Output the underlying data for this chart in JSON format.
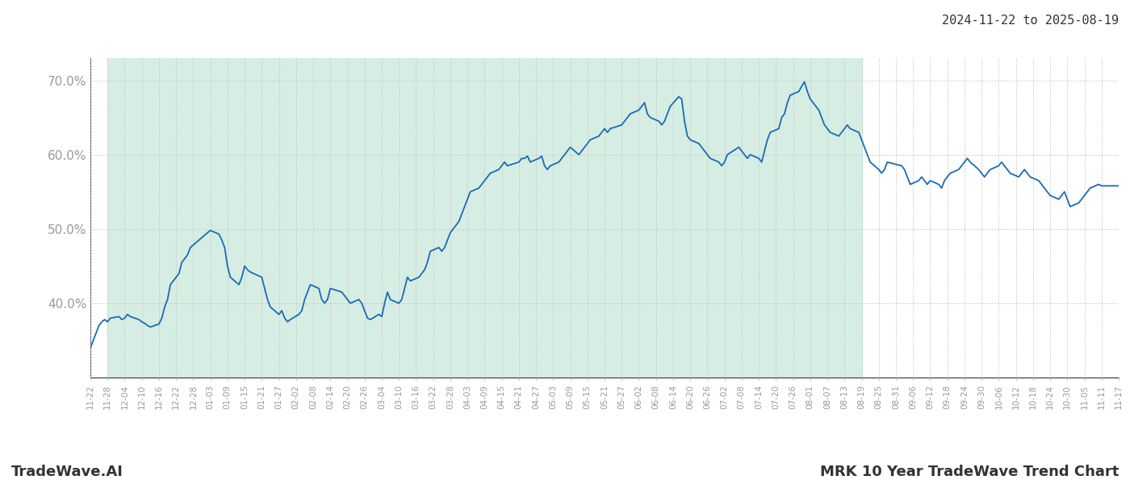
{
  "title_date_range": "2024-11-22 to 2025-08-19",
  "footer_left": "TradeWave.AI",
  "footer_right": "MRK 10 Year TradeWave Trend Chart",
  "ylim": [
    30,
    73
  ],
  "yticks": [
    40.0,
    50.0,
    60.0,
    70.0
  ],
  "ytick_labels": [
    "40.0%",
    "50.0%",
    "60.0%",
    "70.0%"
  ],
  "shaded_start": "2024-11-28",
  "shaded_end": "2025-08-19",
  "line_color": "#1a6bb5",
  "shade_color": "#d6ede3",
  "grid_color": "#c8c8c8",
  "background_color": "#ffffff",
  "xtick_labels": [
    "11-22",
    "11-28",
    "12-04",
    "12-10",
    "12-16",
    "12-22",
    "12-28",
    "01-03",
    "01-09",
    "01-15",
    "01-21",
    "01-27",
    "02-02",
    "02-08",
    "02-14",
    "02-20",
    "02-26",
    "03-04",
    "03-10",
    "03-16",
    "03-22",
    "03-28",
    "04-03",
    "04-09",
    "04-15",
    "04-21",
    "04-27",
    "05-03",
    "05-09",
    "05-15",
    "05-21",
    "05-27",
    "06-02",
    "06-08",
    "06-14",
    "06-20",
    "06-26",
    "07-02",
    "07-08",
    "07-14",
    "07-20",
    "07-26",
    "08-01",
    "08-07",
    "08-13",
    "08-19",
    "08-25",
    "08-31",
    "09-06",
    "09-12",
    "09-18",
    "09-24",
    "09-30",
    "10-06",
    "10-12",
    "10-18",
    "10-24",
    "10-30",
    "11-05",
    "11-11",
    "11-17"
  ],
  "xtick_dates": [
    "2024-11-22",
    "2024-11-28",
    "2024-12-04",
    "2024-12-10",
    "2024-12-16",
    "2024-12-22",
    "2024-12-28",
    "2025-01-03",
    "2025-01-09",
    "2025-01-15",
    "2025-01-21",
    "2025-01-27",
    "2025-02-02",
    "2025-02-08",
    "2025-02-14",
    "2025-02-20",
    "2025-02-26",
    "2025-03-04",
    "2025-03-10",
    "2025-03-16",
    "2025-03-22",
    "2025-03-28",
    "2025-04-03",
    "2025-04-09",
    "2025-04-15",
    "2025-04-21",
    "2025-04-27",
    "2025-05-03",
    "2025-05-09",
    "2025-05-15",
    "2025-05-21",
    "2025-05-27",
    "2025-06-02",
    "2025-06-08",
    "2025-06-14",
    "2025-06-20",
    "2025-06-26",
    "2025-07-02",
    "2025-07-08",
    "2025-07-14",
    "2025-07-20",
    "2025-07-26",
    "2025-08-01",
    "2025-08-07",
    "2025-08-13",
    "2025-08-19",
    "2025-08-25",
    "2025-08-31",
    "2025-09-06",
    "2025-09-12",
    "2025-09-18",
    "2025-09-24",
    "2025-09-30",
    "2025-10-06",
    "2025-10-12",
    "2025-10-18",
    "2025-10-24",
    "2025-10-30",
    "2025-11-05",
    "2025-11-11",
    "2025-11-17"
  ],
  "dates": [
    "2024-11-22",
    "2024-11-25",
    "2024-11-26",
    "2024-11-27",
    "2024-11-28",
    "2024-11-29",
    "2024-12-02",
    "2024-12-03",
    "2024-12-04",
    "2024-12-05",
    "2024-12-06",
    "2024-12-09",
    "2024-12-10",
    "2024-12-11",
    "2024-12-12",
    "2024-12-13",
    "2024-12-16",
    "2024-12-17",
    "2024-12-18",
    "2024-12-19",
    "2024-12-20",
    "2024-12-23",
    "2024-12-24",
    "2024-12-26",
    "2024-12-27",
    "2024-12-30",
    "2025-01-02",
    "2025-01-03",
    "2025-01-06",
    "2025-01-07",
    "2025-01-08",
    "2025-01-09",
    "2025-01-10",
    "2025-01-13",
    "2025-01-14",
    "2025-01-15",
    "2025-01-16",
    "2025-01-17",
    "2025-01-21",
    "2025-01-22",
    "2025-01-23",
    "2025-01-24",
    "2025-01-27",
    "2025-01-28",
    "2025-01-29",
    "2025-01-30",
    "2025-01-31",
    "2025-02-03",
    "2025-02-04",
    "2025-02-05",
    "2025-02-06",
    "2025-02-07",
    "2025-02-10",
    "2025-02-11",
    "2025-02-12",
    "2025-02-13",
    "2025-02-14",
    "2025-02-18",
    "2025-02-19",
    "2025-02-20",
    "2025-02-21",
    "2025-02-24",
    "2025-02-25",
    "2025-02-26",
    "2025-02-27",
    "2025-02-28",
    "2025-03-03",
    "2025-03-04",
    "2025-03-05",
    "2025-03-06",
    "2025-03-07",
    "2025-03-10",
    "2025-03-11",
    "2025-03-12",
    "2025-03-13",
    "2025-03-14",
    "2025-03-17",
    "2025-03-18",
    "2025-03-19",
    "2025-03-20",
    "2025-03-21",
    "2025-03-24",
    "2025-03-25",
    "2025-03-26",
    "2025-03-27",
    "2025-03-28",
    "2025-03-31",
    "2025-04-01",
    "2025-04-02",
    "2025-04-03",
    "2025-04-04",
    "2025-04-07",
    "2025-04-08",
    "2025-04-09",
    "2025-04-10",
    "2025-04-11",
    "2025-04-14",
    "2025-04-15",
    "2025-04-16",
    "2025-04-17",
    "2025-04-21",
    "2025-04-22",
    "2025-04-23",
    "2025-04-24",
    "2025-04-25",
    "2025-04-28",
    "2025-04-29",
    "2025-04-30",
    "2025-05-01",
    "2025-05-02",
    "2025-05-05",
    "2025-05-06",
    "2025-05-07",
    "2025-05-08",
    "2025-05-09",
    "2025-05-12",
    "2025-05-13",
    "2025-05-14",
    "2025-05-15",
    "2025-05-16",
    "2025-05-19",
    "2025-05-20",
    "2025-05-21",
    "2025-05-22",
    "2025-05-23",
    "2025-05-27",
    "2025-05-28",
    "2025-05-29",
    "2025-05-30",
    "2025-06-02",
    "2025-06-03",
    "2025-06-04",
    "2025-06-05",
    "2025-06-06",
    "2025-06-09",
    "2025-06-10",
    "2025-06-11",
    "2025-06-12",
    "2025-06-13",
    "2025-06-16",
    "2025-06-17",
    "2025-06-18",
    "2025-06-19",
    "2025-06-20",
    "2025-06-23",
    "2025-06-24",
    "2025-06-25",
    "2025-06-26",
    "2025-06-27",
    "2025-06-30",
    "2025-07-01",
    "2025-07-02",
    "2025-07-03",
    "2025-07-07",
    "2025-07-08",
    "2025-07-09",
    "2025-07-10",
    "2025-07-11",
    "2025-07-14",
    "2025-07-15",
    "2025-07-16",
    "2025-07-17",
    "2025-07-18",
    "2025-07-21",
    "2025-07-22",
    "2025-07-23",
    "2025-07-24",
    "2025-07-25",
    "2025-07-28",
    "2025-07-29",
    "2025-07-30",
    "2025-07-31",
    "2025-08-01",
    "2025-08-04",
    "2025-08-05",
    "2025-08-06",
    "2025-08-07",
    "2025-08-08",
    "2025-08-11",
    "2025-08-12",
    "2025-08-13",
    "2025-08-14",
    "2025-08-15",
    "2025-08-18",
    "2025-08-19",
    "2025-08-20",
    "2025-08-21",
    "2025-08-22",
    "2025-08-25",
    "2025-08-26",
    "2025-08-27",
    "2025-08-28",
    "2025-09-02",
    "2025-09-03",
    "2025-09-04",
    "2025-09-05",
    "2025-09-08",
    "2025-09-09",
    "2025-09-10",
    "2025-09-11",
    "2025-09-12",
    "2025-09-15",
    "2025-09-16",
    "2025-09-17",
    "2025-09-18",
    "2025-09-19",
    "2025-09-22",
    "2025-09-23",
    "2025-09-24",
    "2025-09-25",
    "2025-09-26",
    "2025-09-29",
    "2025-09-30",
    "2025-10-01",
    "2025-10-02",
    "2025-10-03",
    "2025-10-06",
    "2025-10-07",
    "2025-10-08",
    "2025-10-09",
    "2025-10-10",
    "2025-10-13",
    "2025-10-14",
    "2025-10-15",
    "2025-10-16",
    "2025-10-17",
    "2025-10-20",
    "2025-10-21",
    "2025-10-22",
    "2025-10-23",
    "2025-10-24",
    "2025-10-27",
    "2025-10-28",
    "2025-10-29",
    "2025-10-30",
    "2025-10-31",
    "2025-11-03",
    "2025-11-04",
    "2025-11-05",
    "2025-11-06",
    "2025-11-07",
    "2025-11-10",
    "2025-11-11",
    "2025-11-12",
    "2025-11-13",
    "2025-11-14",
    "2025-11-17"
  ],
  "values": [
    34.0,
    37.0,
    37.5,
    37.8,
    37.5,
    38.0,
    38.2,
    37.8,
    38.0,
    38.5,
    38.2,
    37.8,
    37.5,
    37.3,
    37.0,
    36.8,
    37.2,
    38.0,
    39.5,
    40.5,
    42.5,
    44.0,
    45.5,
    46.5,
    47.5,
    48.5,
    49.5,
    49.8,
    49.3,
    48.5,
    47.5,
    45.0,
    43.5,
    42.5,
    43.5,
    45.0,
    44.5,
    44.2,
    43.5,
    42.0,
    40.5,
    39.5,
    38.5,
    39.0,
    38.0,
    37.5,
    37.8,
    38.5,
    39.0,
    40.5,
    41.5,
    42.5,
    42.0,
    40.5,
    40.0,
    40.5,
    42.0,
    41.5,
    41.0,
    40.5,
    40.0,
    40.5,
    40.0,
    39.0,
    38.0,
    37.8,
    38.5,
    38.2,
    40.0,
    41.5,
    40.5,
    40.0,
    40.5,
    42.0,
    43.5,
    43.0,
    43.5,
    44.0,
    44.5,
    45.5,
    47.0,
    47.5,
    47.0,
    47.5,
    48.5,
    49.5,
    51.0,
    52.0,
    53.0,
    54.0,
    55.0,
    55.5,
    56.0,
    56.5,
    57.0,
    57.5,
    58.0,
    58.5,
    59.0,
    58.5,
    59.0,
    59.5,
    59.5,
    59.8,
    59.0,
    59.5,
    59.8,
    58.5,
    58.0,
    58.5,
    59.0,
    59.5,
    60.0,
    60.5,
    61.0,
    60.0,
    60.5,
    61.0,
    61.5,
    62.0,
    62.5,
    63.0,
    63.5,
    63.0,
    63.5,
    64.0,
    64.5,
    65.0,
    65.5,
    66.0,
    66.5,
    67.0,
    65.5,
    65.0,
    64.5,
    64.0,
    64.5,
    65.5,
    66.5,
    67.8,
    67.5,
    64.5,
    62.5,
    62.0,
    61.5,
    61.0,
    60.5,
    60.0,
    59.5,
    59.0,
    58.5,
    59.0,
    60.0,
    61.0,
    60.5,
    60.0,
    59.5,
    60.0,
    59.5,
    59.0,
    60.5,
    62.0,
    63.0,
    63.5,
    65.0,
    65.5,
    67.0,
    68.0,
    68.5,
    69.2,
    69.8,
    68.5,
    67.5,
    66.0,
    65.0,
    64.0,
    63.5,
    63.0,
    62.5,
    63.0,
    63.5,
    64.0,
    63.5,
    63.0,
    62.0,
    61.0,
    60.0,
    59.0,
    58.0,
    57.5,
    58.0,
    59.0,
    58.5,
    58.0,
    57.0,
    56.0,
    56.5,
    57.0,
    56.5,
    56.0,
    56.5,
    56.0,
    55.5,
    56.5,
    57.0,
    57.5,
    58.0,
    58.5,
    59.0,
    59.5,
    59.0,
    58.0,
    57.5,
    57.0,
    57.5,
    58.0,
    58.5,
    59.0,
    58.5,
    58.0,
    57.5,
    57.0,
    57.5,
    58.0,
    57.5,
    57.0,
    56.5,
    56.0,
    55.5,
    55.0,
    54.5,
    54.0,
    54.5,
    55.0,
    54.0,
    53.0,
    53.5,
    54.0,
    54.5,
    55.0,
    55.5,
    56.0,
    55.8,
    55.8,
    55.8,
    55.8,
    55.8
  ]
}
